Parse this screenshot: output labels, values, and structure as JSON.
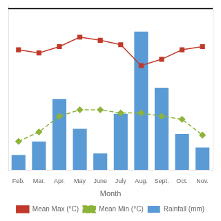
{
  "chart_data": {
    "type": "bar",
    "x_label": "Month",
    "categories": [
      "Feb.",
      "Mar.",
      "Apr.",
      "May",
      "June",
      "July",
      "Aug.",
      "Sept.",
      "Oct.",
      "Nov."
    ],
    "series": [
      {
        "name": "Rainfall (mm)",
        "type": "bar",
        "color": "#5b9bd5",
        "axis": "y",
        "values": [
          20,
          38,
          95,
          55,
          22,
          75,
          185,
          110,
          48,
          30
        ]
      },
      {
        "name": "Mean Max (°C)",
        "type": "line",
        "color": "#c0392b",
        "axis": "y2",
        "marker": "square",
        "line_style": "solid",
        "values": [
          33.0,
          32.5,
          33.5,
          35.0,
          34.5,
          33.8,
          30.5,
          31.5,
          33.0,
          33.5
        ]
      },
      {
        "name": "Mean Min (°C)",
        "type": "line",
        "color": "#8db33a",
        "axis": "y2",
        "marker": "diamond",
        "line_style": "dashed",
        "values": [
          18.5,
          20.0,
          22.5,
          23.5,
          23.5,
          23.0,
          23.0,
          22.5,
          22.0,
          19.5
        ]
      }
    ],
    "ylim": [
      0,
      220
    ],
    "y2lim": [
      14,
      40
    ],
    "hline": {
      "value": 39.5,
      "axis": "y2",
      "color": "#000000"
    },
    "grid": false,
    "legend": "bottom",
    "tick_labels": "x"
  }
}
